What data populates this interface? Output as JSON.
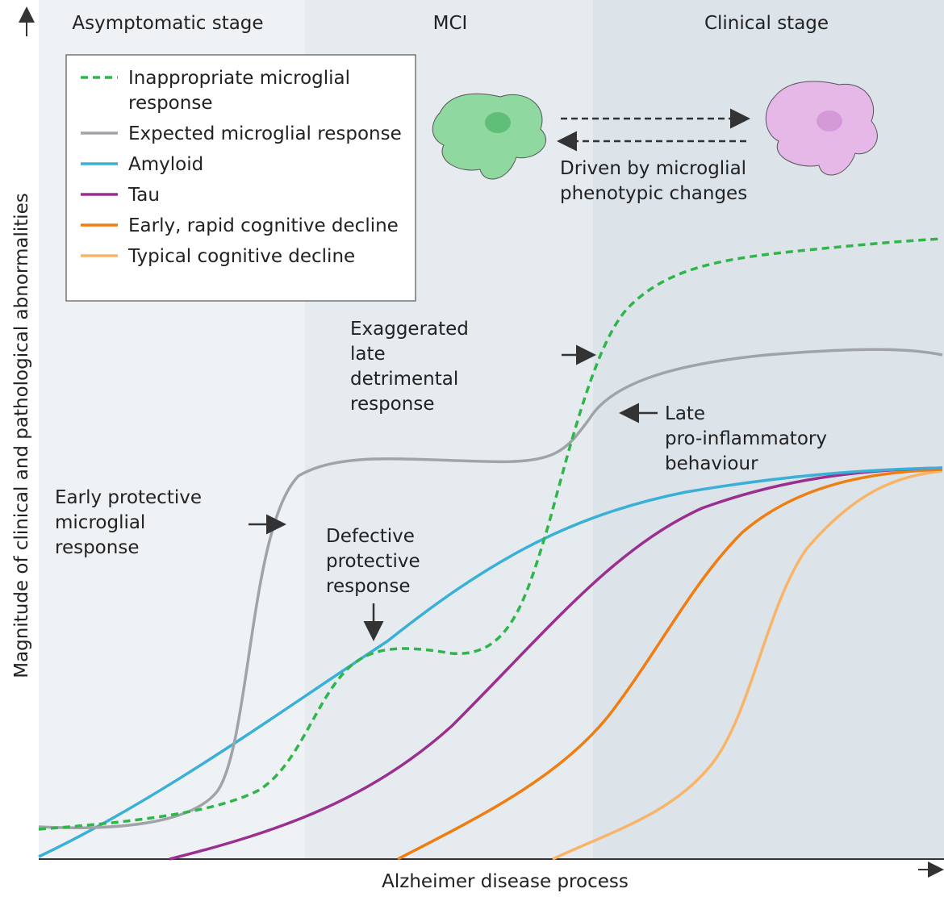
{
  "stages": [
    "Asymptomatic stage",
    "MCI",
    "Clinical stage"
  ],
  "y_axis_label": "Magnitude of clinical and pathological abnormalities",
  "x_axis_label": "Alzheimer disease process",
  "legend": [
    {
      "label": "Inappropriate microglial response",
      "color": "#2fb54a",
      "dashed": true
    },
    {
      "label": "Expected microglial response",
      "color": "#a0a4a8",
      "dashed": false
    },
    {
      "label": "Amyloid",
      "color": "#3ab0d8",
      "dashed": false
    },
    {
      "label": "Tau",
      "color": "#9b2f8f",
      "dashed": false
    },
    {
      "label": "Early, rapid cognitive decline",
      "color": "#ef7d10",
      "dashed": false
    },
    {
      "label": "Typical cognitive decline",
      "color": "#f8b56a",
      "dashed": false
    }
  ],
  "annotations": {
    "phenotype": "Driven by microglial phenotypic changes",
    "exaggerated": "Exaggerated late detrimental response",
    "late": "Late pro-inflammatory behaviour",
    "early": "Early protective microglial response",
    "defective": "Defective protective response"
  }
}
